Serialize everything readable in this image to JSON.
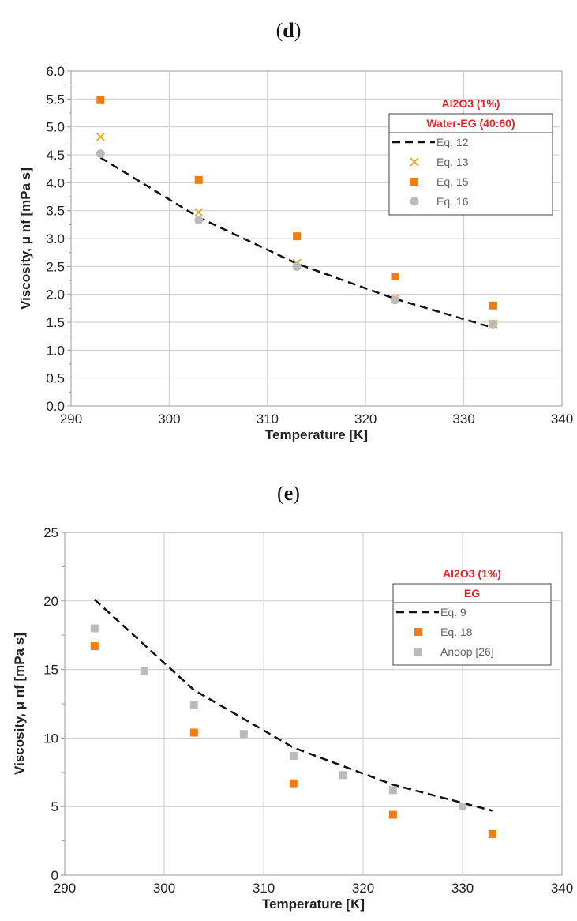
{
  "panels": [
    {
      "label_open": "(",
      "label_letter": "d",
      "label_close": ")"
    },
    {
      "label_open": "(",
      "label_letter": "e",
      "label_close": ")"
    }
  ],
  "chart_data": [
    {
      "type": "scatter",
      "xlabel": "Temperature [K]",
      "ylabel": "Viscosity, μ nf [mPa s]",
      "xlim": [
        290,
        340
      ],
      "ylim": [
        0,
        6
      ],
      "xticks": [
        "290",
        "300",
        "310",
        "320",
        "330",
        "340"
      ],
      "yticks": [
        "0.0",
        "0.5",
        "1.0",
        "1.5",
        "2.0",
        "2.5",
        "3.0",
        "3.5",
        "4.0",
        "4.5",
        "5.0",
        "5.5",
        "6.0"
      ],
      "grid": true,
      "legend": {
        "position": "top-right",
        "title_top": "Al2O3 (1%)",
        "title_box": "Water-EG (40:60)",
        "entries": [
          "Eq. 12",
          "Eq. 13",
          "Eq. 15",
          "Eq. 16"
        ]
      },
      "series": [
        {
          "name": "Eq. 12",
          "kind": "dashed-line",
          "color": "#111111",
          "x": [
            293,
            303,
            313,
            323,
            333
          ],
          "y": [
            4.45,
            3.38,
            2.55,
            1.92,
            1.4
          ]
        },
        {
          "name": "Eq. 13",
          "kind": "cross",
          "color": "#e9a626",
          "x": [
            293,
            303,
            313,
            323,
            333
          ],
          "y": [
            4.82,
            3.47,
            2.56,
            1.92,
            1.47
          ]
        },
        {
          "name": "Eq. 15",
          "kind": "square",
          "color": "#f07d12",
          "x": [
            293,
            303,
            313,
            323,
            333
          ],
          "y": [
            5.48,
            4.05,
            3.04,
            2.32,
            1.8
          ]
        },
        {
          "name": "Eq. 16",
          "kind": "circle",
          "color": "#bbbbbb",
          "x": [
            293,
            303,
            313,
            323,
            333
          ],
          "y": [
            4.52,
            3.33,
            2.5,
            1.9,
            1.47
          ]
        }
      ]
    },
    {
      "type": "scatter",
      "xlabel": "Temperature [K]",
      "ylabel": "Viscosity, μ nf [mPa s]",
      "xlim": [
        290,
        340
      ],
      "ylim": [
        0,
        25
      ],
      "xticks": [
        "290",
        "300",
        "310",
        "320",
        "330",
        "340"
      ],
      "yticks": [
        "0",
        "5",
        "10",
        "15",
        "20",
        "25"
      ],
      "grid": true,
      "legend": {
        "position": "top-right",
        "title_top": "Al2O3 (1%)",
        "title_box": "EG",
        "entries": [
          "Eq. 9",
          "Eq. 18",
          "Anoop [26]"
        ]
      },
      "series": [
        {
          "name": "Eq. 9",
          "kind": "dashed-line",
          "color": "#111111",
          "x": [
            293,
            303,
            313,
            323,
            333
          ],
          "y": [
            20.1,
            13.5,
            9.3,
            6.6,
            4.7
          ]
        },
        {
          "name": "Eq. 18",
          "kind": "square",
          "color": "#f07d12",
          "x": [
            293,
            303,
            313,
            323,
            333
          ],
          "y": [
            16.7,
            10.4,
            6.7,
            4.4,
            3.0
          ]
        },
        {
          "name": "Anoop [26]",
          "kind": "square",
          "color": "#bbbbbb",
          "x": [
            293,
            298,
            303,
            308,
            313,
            318,
            323,
            330
          ],
          "y": [
            18.0,
            14.9,
            12.4,
            10.3,
            8.7,
            7.3,
            6.2,
            5.0
          ]
        }
      ]
    }
  ]
}
